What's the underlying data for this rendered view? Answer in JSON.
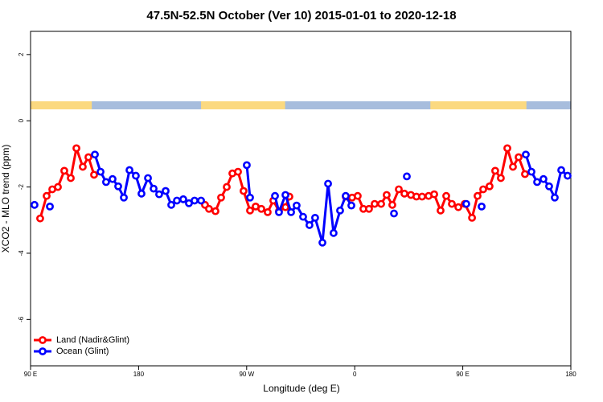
{
  "chart_data": {
    "type": "line",
    "title": "47.5N-52.5N October (Ver 10)   2015-01-01 to 2020-12-18",
    "xlabel": "Longitude (deg E)",
    "ylabel": "XCO2 - MLO trend (ppm)",
    "xlim": [
      90,
      540
    ],
    "ylim": [
      -7.4,
      2.7
    ],
    "xticks": [
      {
        "value": 90,
        "label": "90 E"
      },
      180,
      {
        "value": 270,
        "label": "90 W"
      },
      {
        "value": 360,
        "label": "0"
      },
      {
        "value": 450,
        "label": "90 E"
      },
      {
        "value": 540,
        "label": "180"
      }
    ],
    "yticks": [
      2,
      0,
      -2,
      -4,
      -6
    ],
    "legend": "bottom-left",
    "strip": {
      "ocean_color": "#a7bddd",
      "land_color": "#fbd980",
      "land_ranges": [
        [
          90,
          141
        ],
        [
          232,
          302
        ],
        [
          423,
          503
        ]
      ]
    },
    "series": [
      {
        "name": "Land (Nadir&Glint)",
        "color": "#ff0000",
        "x": [
          98.0,
          103.4,
          108.1,
          112.8,
          118.1,
          123.5,
          128.2,
          133.5,
          138.2,
          142.9,
          null,
          235.3,
          238.6,
          244.0,
          248.7,
          253.4,
          258.1,
          262.8,
          267.4,
          272.8,
          277.5,
          282.2,
          287.5,
          292.2,
          296.9,
          302.3,
          305.6,
          null,
          352.5,
          357.8,
          362.5,
          367.2,
          371.9,
          376.6,
          382.0,
          386.6,
          391.3,
          396.7,
          401.4,
          406.8,
          411.4,
          416.1,
          421.5,
          426.2,
          431.5,
          436.2,
          440.9,
          446.3,
          451.6,
          457.7,
          462.3,
          467.0,
          472.3,
          477.0,
          481.7,
          487.1,
          491.8,
          496.5,
          501.8
        ],
        "values": [
          -2.95,
          -2.27,
          -2.07,
          -2.0,
          -1.51,
          -1.73,
          -0.83,
          -1.39,
          -1.1,
          -1.63,
          null,
          -2.54,
          -2.66,
          -2.73,
          -2.32,
          -2.0,
          -1.59,
          -1.54,
          -2.12,
          -2.71,
          -2.59,
          -2.66,
          -2.76,
          -2.41,
          -2.73,
          -2.61,
          -2.29,
          null,
          -2.29,
          -2.32,
          -2.27,
          -2.66,
          -2.66,
          -2.51,
          -2.51,
          -2.24,
          -2.54,
          -2.07,
          -2.2,
          -2.24,
          -2.29,
          -2.29,
          -2.27,
          -2.22,
          -2.71,
          -2.27,
          -2.51,
          -2.61,
          -2.51,
          -2.93,
          -2.27,
          -2.07,
          -1.98,
          -1.51,
          -1.73,
          -0.83,
          -1.39,
          -1.1,
          -1.61
        ]
      },
      {
        "name": "Ocean (Glint)",
        "color": "#0000ff",
        "x": [
          93.3,
          null,
          106.1,
          null,
          143.6,
          148.3,
          152.9,
          158.3,
          163.0,
          167.7,
          172.4,
          177.7,
          182.4,
          187.8,
          192.5,
          197.1,
          202.5,
          207.2,
          211.9,
          217.2,
          221.9,
          226.6,
          232.0,
          null,
          270.1,
          272.8,
          null,
          293.6,
          296.9,
          302.3,
          307.0,
          311.6,
          317.0,
          322.3,
          327.0,
          333.1,
          337.8,
          342.4,
          347.8,
          352.5,
          357.2,
          null,
          392.7,
          null,
          403.4,
          null,
          452.9,
          null,
          465.7,
          null,
          502.5,
          507.2,
          511.9,
          517.2,
          521.9,
          526.6,
          532.0,
          537.3
        ],
        "values": [
          -2.54,
          null,
          -2.59,
          null,
          -1.02,
          -1.54,
          -1.85,
          -1.76,
          -1.98,
          -2.32,
          -1.49,
          -1.66,
          -2.2,
          -1.73,
          -2.05,
          -2.22,
          -2.12,
          -2.54,
          -2.41,
          -2.37,
          -2.49,
          -2.41,
          -2.41,
          null,
          -1.34,
          -2.32,
          null,
          -2.27,
          -2.76,
          -2.24,
          -2.76,
          -2.56,
          -2.9,
          -3.15,
          -2.93,
          -3.68,
          -1.9,
          -3.39,
          -2.71,
          -2.27,
          -2.56,
          null,
          -2.8,
          null,
          -1.68,
          null,
          -2.51,
          null,
          -2.59,
          null,
          -1.02,
          -1.54,
          -1.85,
          -1.76,
          -1.98,
          -2.32,
          -1.49,
          -1.66
        ]
      }
    ]
  }
}
